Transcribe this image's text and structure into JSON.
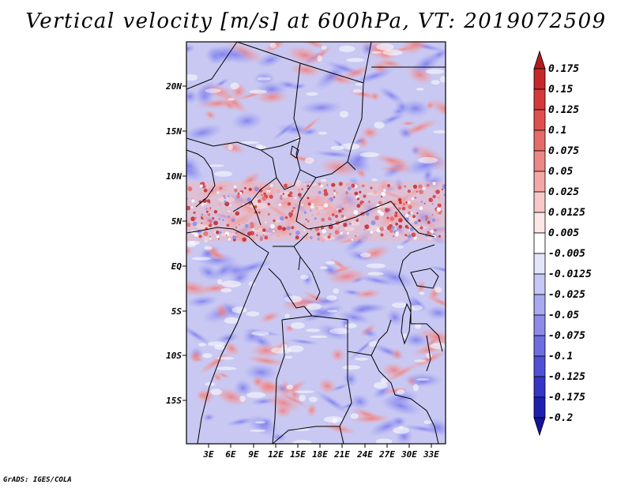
{
  "title": "Vertical velocity [m/s] at 600hPa, VT: 2019072509",
  "credit": "GrADS: IGES/COLA",
  "lat_labels": [
    "20N",
    "15N",
    "10N",
    "5N",
    "EQ",
    "5S",
    "10S",
    "15S"
  ],
  "lon_labels": [
    "3E",
    "6E",
    "9E",
    "12E",
    "15E",
    "18E",
    "21E",
    "24E",
    "27E",
    "30E",
    "33E"
  ],
  "colorbar": {
    "labels": [
      "0.175",
      "0.15",
      "0.125",
      "0.1",
      "0.075",
      "0.05",
      "0.025",
      "0.0125",
      "0.005",
      "-0.005",
      "-0.0125",
      "-0.025",
      "-0.05",
      "-0.075",
      "-0.1",
      "-0.125",
      "-0.175",
      "-0.2"
    ],
    "colors": [
      "#b31c1c",
      "#c42828",
      "#d43a3a",
      "#e04e4e",
      "#e56a6a",
      "#ec8787",
      "#f3a8a8",
      "#f8c8c8",
      "#fde6e6",
      "#ffffff",
      "#e4e4fb",
      "#c7c7f5",
      "#a9a9ef",
      "#8c8ce8",
      "#6e6ee0",
      "#5050d6",
      "#3535c8",
      "#2020b0",
      "#14149a"
    ]
  }
}
